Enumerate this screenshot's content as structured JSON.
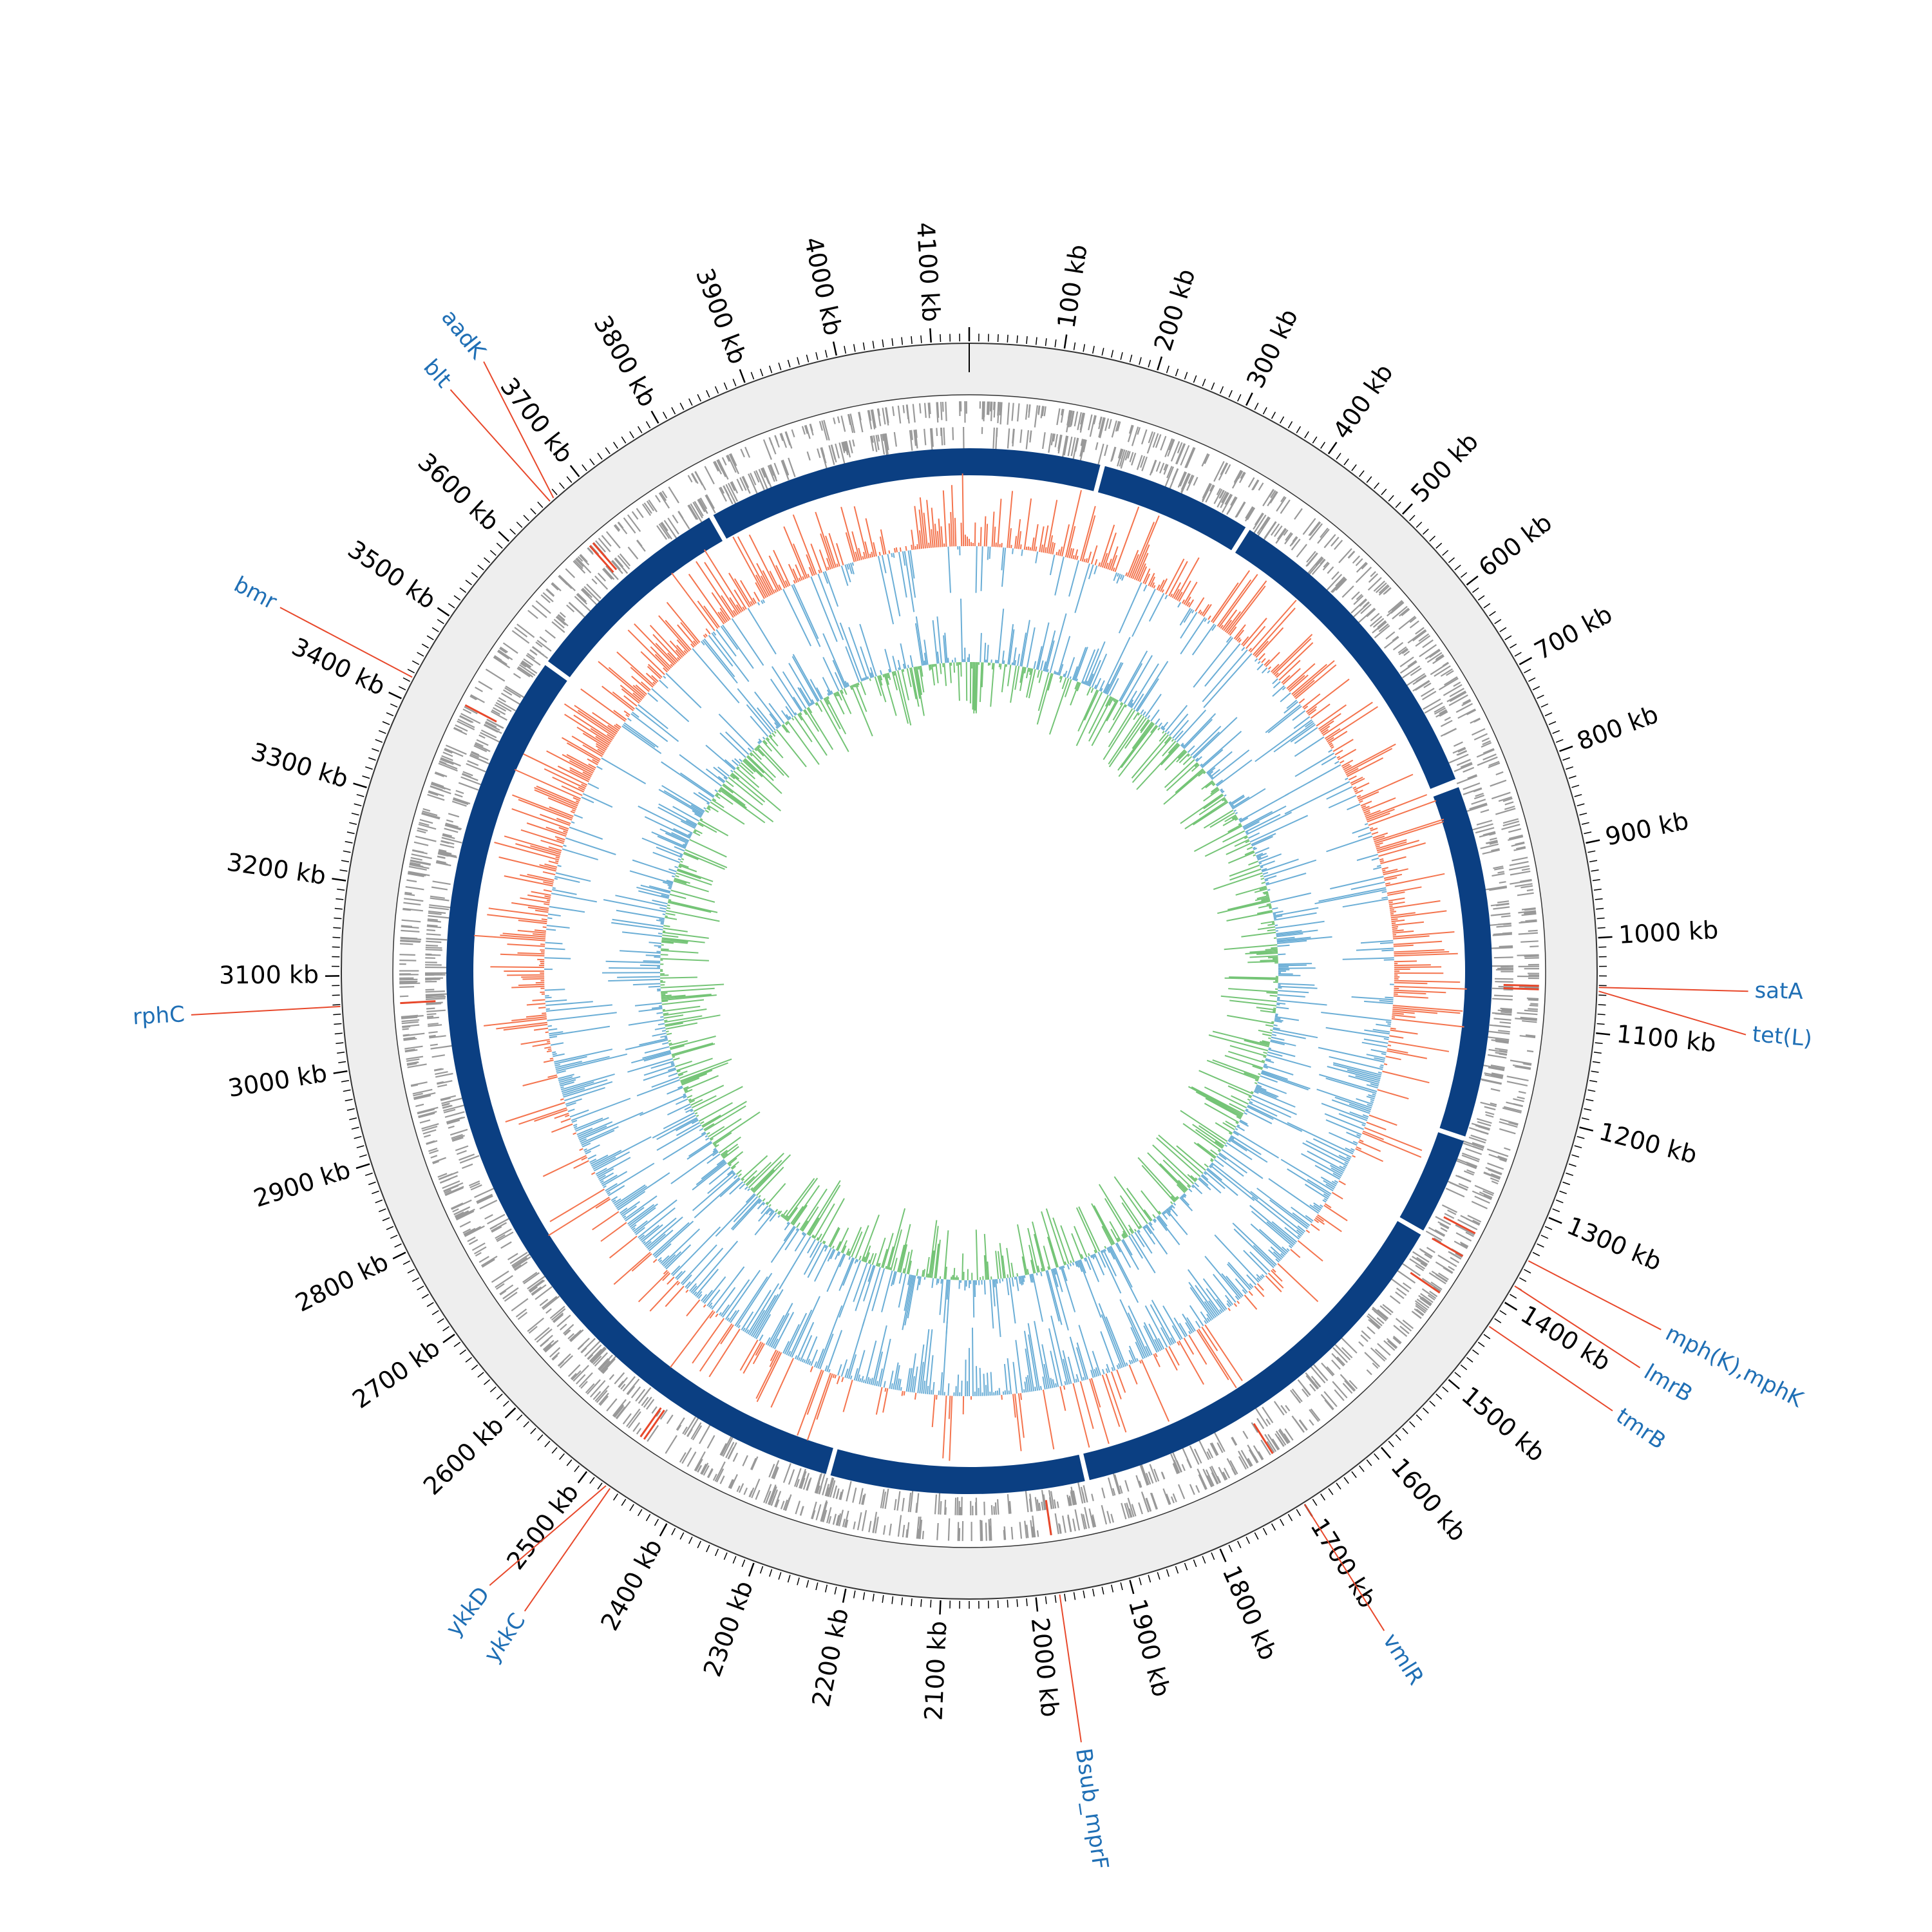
{
  "map": {
    "genome_length_kb": 4140,
    "tick_unit": "kb",
    "tick_labels": [
      "100 kb",
      "200 kb",
      "300 kb",
      "400 kb",
      "500 kb",
      "600 kb",
      "700 kb",
      "800 kb",
      "900 kb",
      "1000 kb",
      "1100 kb",
      "1200 kb",
      "1300 kb",
      "1400 kb",
      "1500 kb",
      "1600 kb",
      "1700 kb",
      "1800 kb",
      "1900 kb",
      "2000 kb",
      "2100 kb",
      "2200 kb",
      "2300 kb",
      "2400 kb",
      "2500 kb",
      "2600 kb",
      "2700 kb",
      "2800 kb",
      "2900 kb",
      "3000 kb",
      "3100 kb",
      "3200 kb",
      "3300 kb",
      "3400 kb",
      "3500 kb",
      "3600 kb",
      "3700 kb",
      "3800 kb",
      "3900 kb",
      "4000 kb",
      "4100 kb"
    ],
    "tick_positions_kb": [
      100,
      200,
      300,
      400,
      500,
      600,
      700,
      800,
      900,
      1000,
      1100,
      1200,
      1300,
      1400,
      1500,
      1600,
      1700,
      1800,
      1900,
      2000,
      2100,
      2200,
      2300,
      2400,
      2500,
      2600,
      2700,
      2800,
      2900,
      3000,
      3100,
      3200,
      3300,
      3400,
      3500,
      3600,
      3700,
      3800,
      3900,
      4000,
      4100
    ],
    "annotated_genes": [
      {
        "label": "aadK",
        "position_kb": 3665
      },
      {
        "label": "blt",
        "position_kb": 3660
      },
      {
        "label": "bmr",
        "position_kb": 3425
      },
      {
        "label": "rphC",
        "position_kb": 3068
      },
      {
        "label": "satA",
        "position_kb": 1052
      },
      {
        "label": "tet(L)",
        "position_kb": 1056
      },
      {
        "label": "mph(K),mphK",
        "position_kb": 1350
      },
      {
        "label": "lmrB",
        "position_kb": 1380
      },
      {
        "label": "tmrB",
        "position_kb": 1430
      },
      {
        "label": "vmlR",
        "position_kb": 1700
      },
      {
        "label": "Bsub_mprF",
        "position_kb": 1975
      },
      {
        "label": "ykkD",
        "position_kb": 2475
      },
      {
        "label": "ykkC",
        "position_kb": 2470
      }
    ],
    "colors": {
      "label_blue": "#1f6fb5",
      "leader_red": "#e8482b",
      "contig_blue": "#0b3f82",
      "gc_content_positive": "#f4744e",
      "gc_content_negative": "#6baed6",
      "gc_skew_positive": "#74c476",
      "gc_skew_negative": "#6baed6",
      "cds_gray": "#999999",
      "backbone_gray": "#eeeeee"
    },
    "contig_gaps_kb": [
      170,
      370,
      790,
      795,
      1250,
      1380,
      1920,
      2250,
      3520,
      3800
    ],
    "gc_skew_switch_kb": [
      1115,
      2980
    ],
    "contig_gap_width_kb": 6
  }
}
